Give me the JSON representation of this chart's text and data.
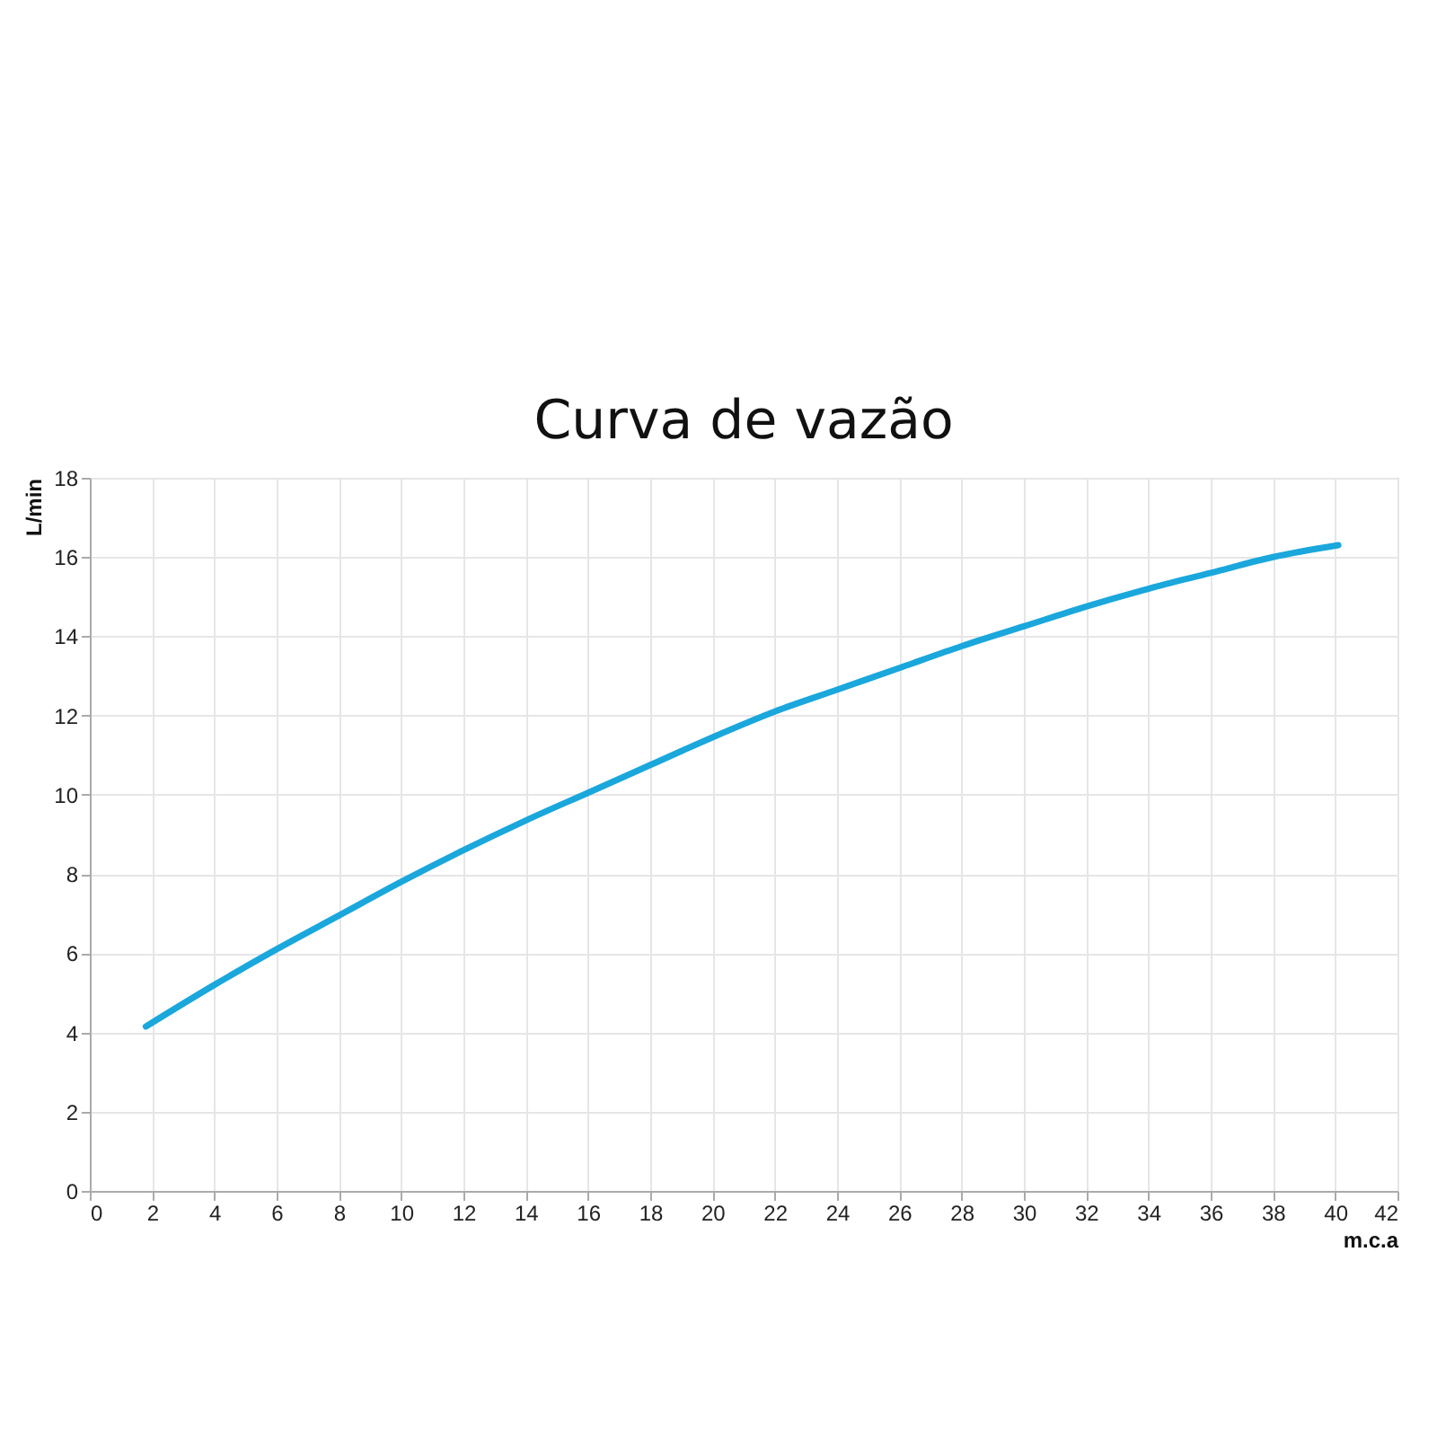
{
  "chart_data": {
    "type": "line",
    "title": "Curva de vazão",
    "xlabel": "m.c.a",
    "ylabel": "L/min",
    "x": [
      1.8,
      4,
      6,
      8,
      10,
      12,
      14,
      16,
      18,
      20,
      22,
      24,
      26,
      28,
      30,
      32,
      34,
      36,
      38,
      40.1
    ],
    "series": [
      {
        "color": "#1aa7dc",
        "values": [
          4.15,
          5.2,
          6.1,
          6.95,
          7.8,
          8.6,
          9.35,
          10.05,
          10.75,
          11.45,
          12.1,
          12.65,
          13.2,
          13.75,
          14.25,
          14.75,
          15.2,
          15.6,
          16.0,
          16.3
        ]
      }
    ],
    "xlim": [
      0,
      42
    ],
    "ylim": [
      0,
      18
    ],
    "xticks": [
      0,
      2,
      4,
      6,
      8,
      10,
      12,
      14,
      16,
      18,
      20,
      22,
      24,
      26,
      28,
      30,
      32,
      34,
      36,
      38,
      40,
      42
    ],
    "yticks": [
      0,
      2,
      4,
      6,
      8,
      10,
      12,
      14,
      16,
      18
    ],
    "grid": true,
    "line_style": "solid"
  }
}
